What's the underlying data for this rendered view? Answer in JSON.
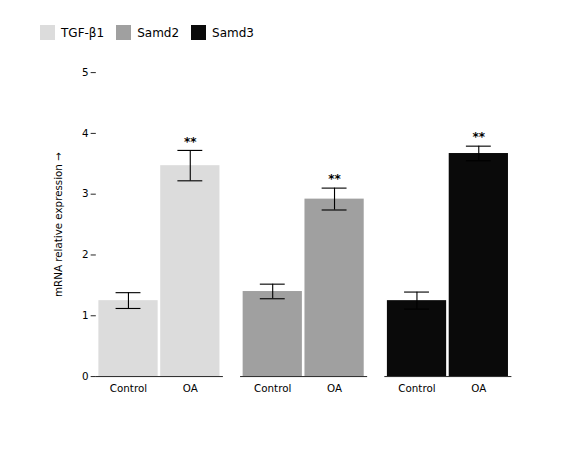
{
  "chart_data": {
    "type": "bar",
    "categories": [
      "Control",
      "OA"
    ],
    "series": [
      {
        "name": "TGF-β1",
        "color": "#DCDCDC",
        "values": [
          1.25,
          3.47
        ],
        "errors": [
          0.13,
          0.25
        ]
      },
      {
        "name": "Samd2",
        "color": "#A0A0A0",
        "values": [
          1.4,
          2.92
        ],
        "errors": [
          0.12,
          0.18
        ]
      },
      {
        "name": "Samd3",
        "color": "#0a0a0a",
        "values": [
          1.25,
          3.67
        ],
        "errors": [
          0.14,
          0.12
        ]
      }
    ],
    "annotations": [
      {
        "text": "**",
        "series": "TGF-β1",
        "category": "OA"
      },
      {
        "text": "**",
        "series": "Samd2",
        "category": "OA"
      },
      {
        "text": "**",
        "series": "Samd3",
        "category": "OA"
      }
    ],
    "ylabel": "mRNA relative expression",
    "ylim": [
      0,
      5
    ],
    "yticks": [
      0,
      1,
      2,
      3,
      4,
      5
    ],
    "grid": false,
    "legend": "upper left"
  }
}
